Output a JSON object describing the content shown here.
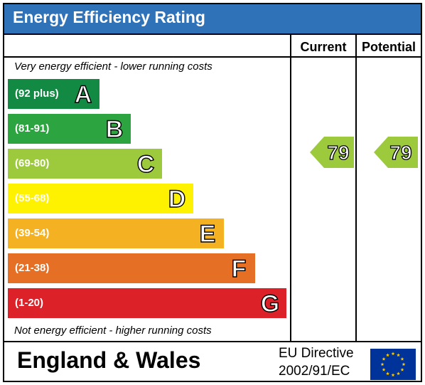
{
  "header": {
    "title": "Energy Efficiency Rating"
  },
  "columns": {
    "current": "Current",
    "potential": "Potential"
  },
  "notes": {
    "top": "Very energy efficient - lower running costs",
    "bottom": "Not energy efficient - higher running costs"
  },
  "bands": [
    {
      "range": "(92 plus)",
      "letter": "A",
      "color": "#138a43"
    },
    {
      "range": "(81-91)",
      "letter": "B",
      "color": "#2ca43f"
    },
    {
      "range": "(69-80)",
      "letter": "C",
      "color": "#9dca3c"
    },
    {
      "range": "(55-68)",
      "letter": "D",
      "color": "#fff200"
    },
    {
      "range": "(39-54)",
      "letter": "E",
      "color": "#f4b122"
    },
    {
      "range": "(21-38)",
      "letter": "F",
      "color": "#e57025"
    },
    {
      "range": "(1-20)",
      "letter": "G",
      "color": "#dc2128"
    }
  ],
  "ratings": {
    "current": {
      "value": "79",
      "band": "C",
      "color": "#9dca3c"
    },
    "potential": {
      "value": "79",
      "band": "C",
      "color": "#9dca3c"
    }
  },
  "footer": {
    "region": "England & Wales",
    "directive_line1": "EU Directive",
    "directive_line2": "2002/91/EC",
    "flag_color": "#003399",
    "star_color": "#ffcc00"
  }
}
